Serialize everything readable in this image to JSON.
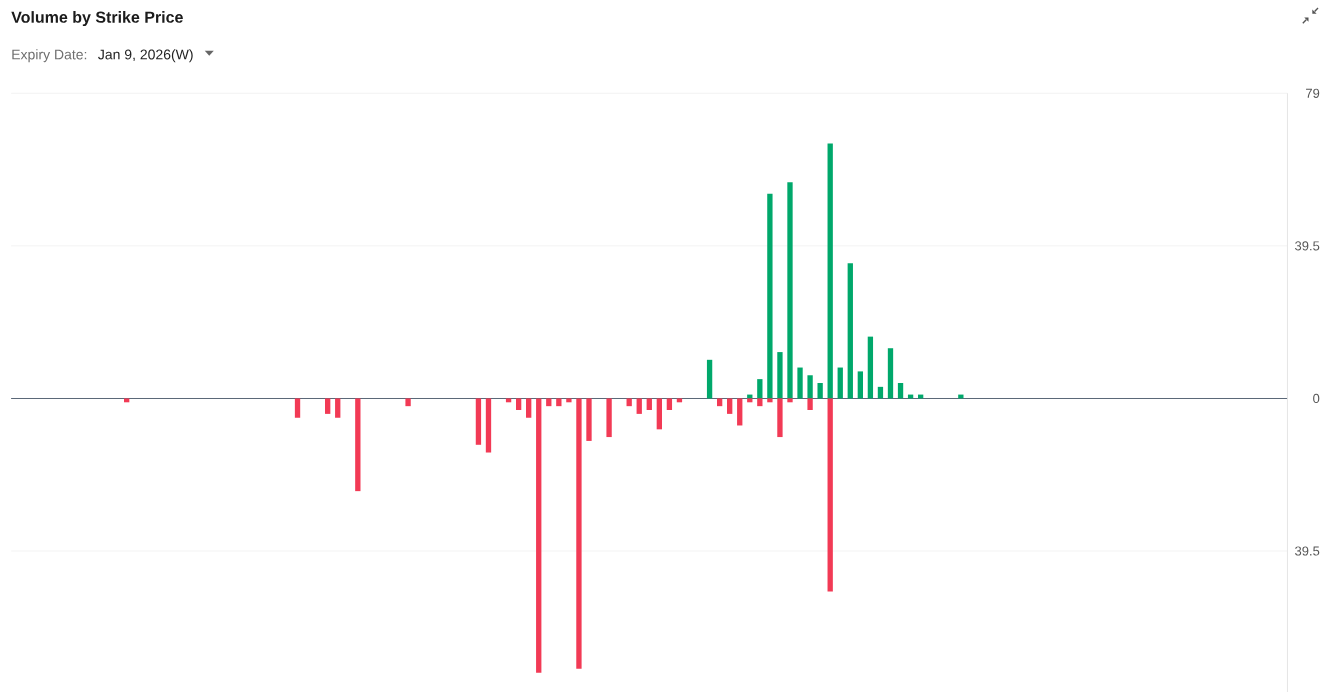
{
  "chart_data": {
    "type": "bar",
    "title": "Volume by Strike Price",
    "subtitle": "Expiry Date:",
    "annotations": [
      "Jan 9, 2026(W)"
    ],
    "categories": [
      null,
      null,
      null,
      null,
      null,
      null,
      null,
      null,
      null,
      null,
      null,
      null,
      null,
      null,
      null,
      null,
      null,
      null,
      null,
      null,
      null,
      null,
      null,
      null,
      null,
      null,
      null,
      null,
      null,
      null,
      null,
      null,
      null,
      null,
      null,
      null,
      null,
      null,
      null,
      null,
      null,
      null,
      null,
      null,
      null,
      null,
      null,
      null,
      null,
      null,
      null,
      null,
      null,
      null,
      null,
      null,
      null,
      null,
      null,
      null,
      null,
      null,
      null,
      null,
      null,
      null,
      null,
      null,
      null,
      null,
      null,
      null,
      null,
      null,
      null,
      null,
      null,
      null,
      null,
      null,
      null,
      null,
      null,
      null,
      null,
      null,
      null,
      null,
      null,
      null,
      null,
      null,
      null,
      null,
      null,
      null,
      null,
      null,
      null,
      null,
      null,
      null,
      null,
      null,
      null,
      null,
      null,
      null,
      null,
      null,
      null,
      null,
      null,
      null,
      null,
      null,
      null,
      null,
      null,
      null,
      null,
      null,
      null,
      null,
      null,
      null,
      null
    ],
    "series": [
      {
        "color": "#00a86b",
        "values": [
          null,
          null,
          null,
          null,
          null,
          null,
          null,
          null,
          null,
          null,
          null,
          null,
          null,
          null,
          null,
          null,
          null,
          null,
          null,
          null,
          null,
          null,
          null,
          null,
          null,
          null,
          null,
          null,
          null,
          null,
          null,
          null,
          null,
          null,
          null,
          null,
          null,
          null,
          null,
          null,
          null,
          null,
          null,
          null,
          null,
          null,
          null,
          null,
          null,
          null,
          null,
          null,
          null,
          null,
          null,
          null,
          null,
          null,
          null,
          null,
          null,
          null,
          null,
          null,
          null,
          null,
          null,
          null,
          null,
          10,
          null,
          null,
          null,
          1,
          5,
          53,
          12,
          56,
          8,
          6,
          4,
          66,
          8,
          35,
          7,
          16,
          3,
          13,
          4,
          1,
          1,
          null,
          null,
          null,
          1,
          null,
          null,
          null,
          null,
          null,
          null,
          null,
          null,
          null,
          null,
          null,
          null,
          null,
          null,
          null,
          null,
          null,
          null,
          null,
          null,
          null,
          null,
          null,
          null,
          null,
          null,
          null,
          null,
          null,
          null,
          null,
          null
        ]
      },
      {
        "color": "#f23a55",
        "values": [
          null,
          null,
          null,
          null,
          null,
          null,
          null,
          null,
          null,
          null,
          null,
          -1,
          null,
          null,
          null,
          null,
          null,
          null,
          null,
          null,
          null,
          null,
          null,
          null,
          null,
          null,
          null,
          null,
          -5,
          null,
          null,
          -4,
          -5,
          null,
          -24,
          null,
          null,
          null,
          null,
          -2,
          null,
          null,
          null,
          null,
          null,
          null,
          -12,
          -14,
          null,
          -1,
          -3,
          -5,
          -71,
          -2,
          -2,
          -1,
          -70,
          -11,
          null,
          -10,
          null,
          -2,
          -4,
          -3,
          -8,
          -3,
          -1,
          null,
          null,
          null,
          -2,
          -4,
          -7,
          -1,
          -2,
          -1,
          -10,
          -1,
          null,
          -3,
          null,
          -50,
          null,
          null,
          null,
          null,
          null,
          null,
          null,
          null,
          null,
          null,
          null,
          null,
          null,
          null,
          null,
          null,
          null,
          null,
          null,
          null,
          null,
          null,
          null,
          null,
          null,
          null,
          null,
          null,
          null,
          null,
          null,
          null,
          null,
          null,
          null,
          null,
          null,
          null,
          null,
          null,
          null,
          null,
          null,
          null,
          null
        ]
      }
    ],
    "ylim": [
      -76,
      79
    ],
    "yticks": [
      79,
      39.5,
      0,
      {
        "value": -39.5,
        "label": "39.5"
      }
    ],
    "grid": "y",
    "tick_labels": "y"
  }
}
